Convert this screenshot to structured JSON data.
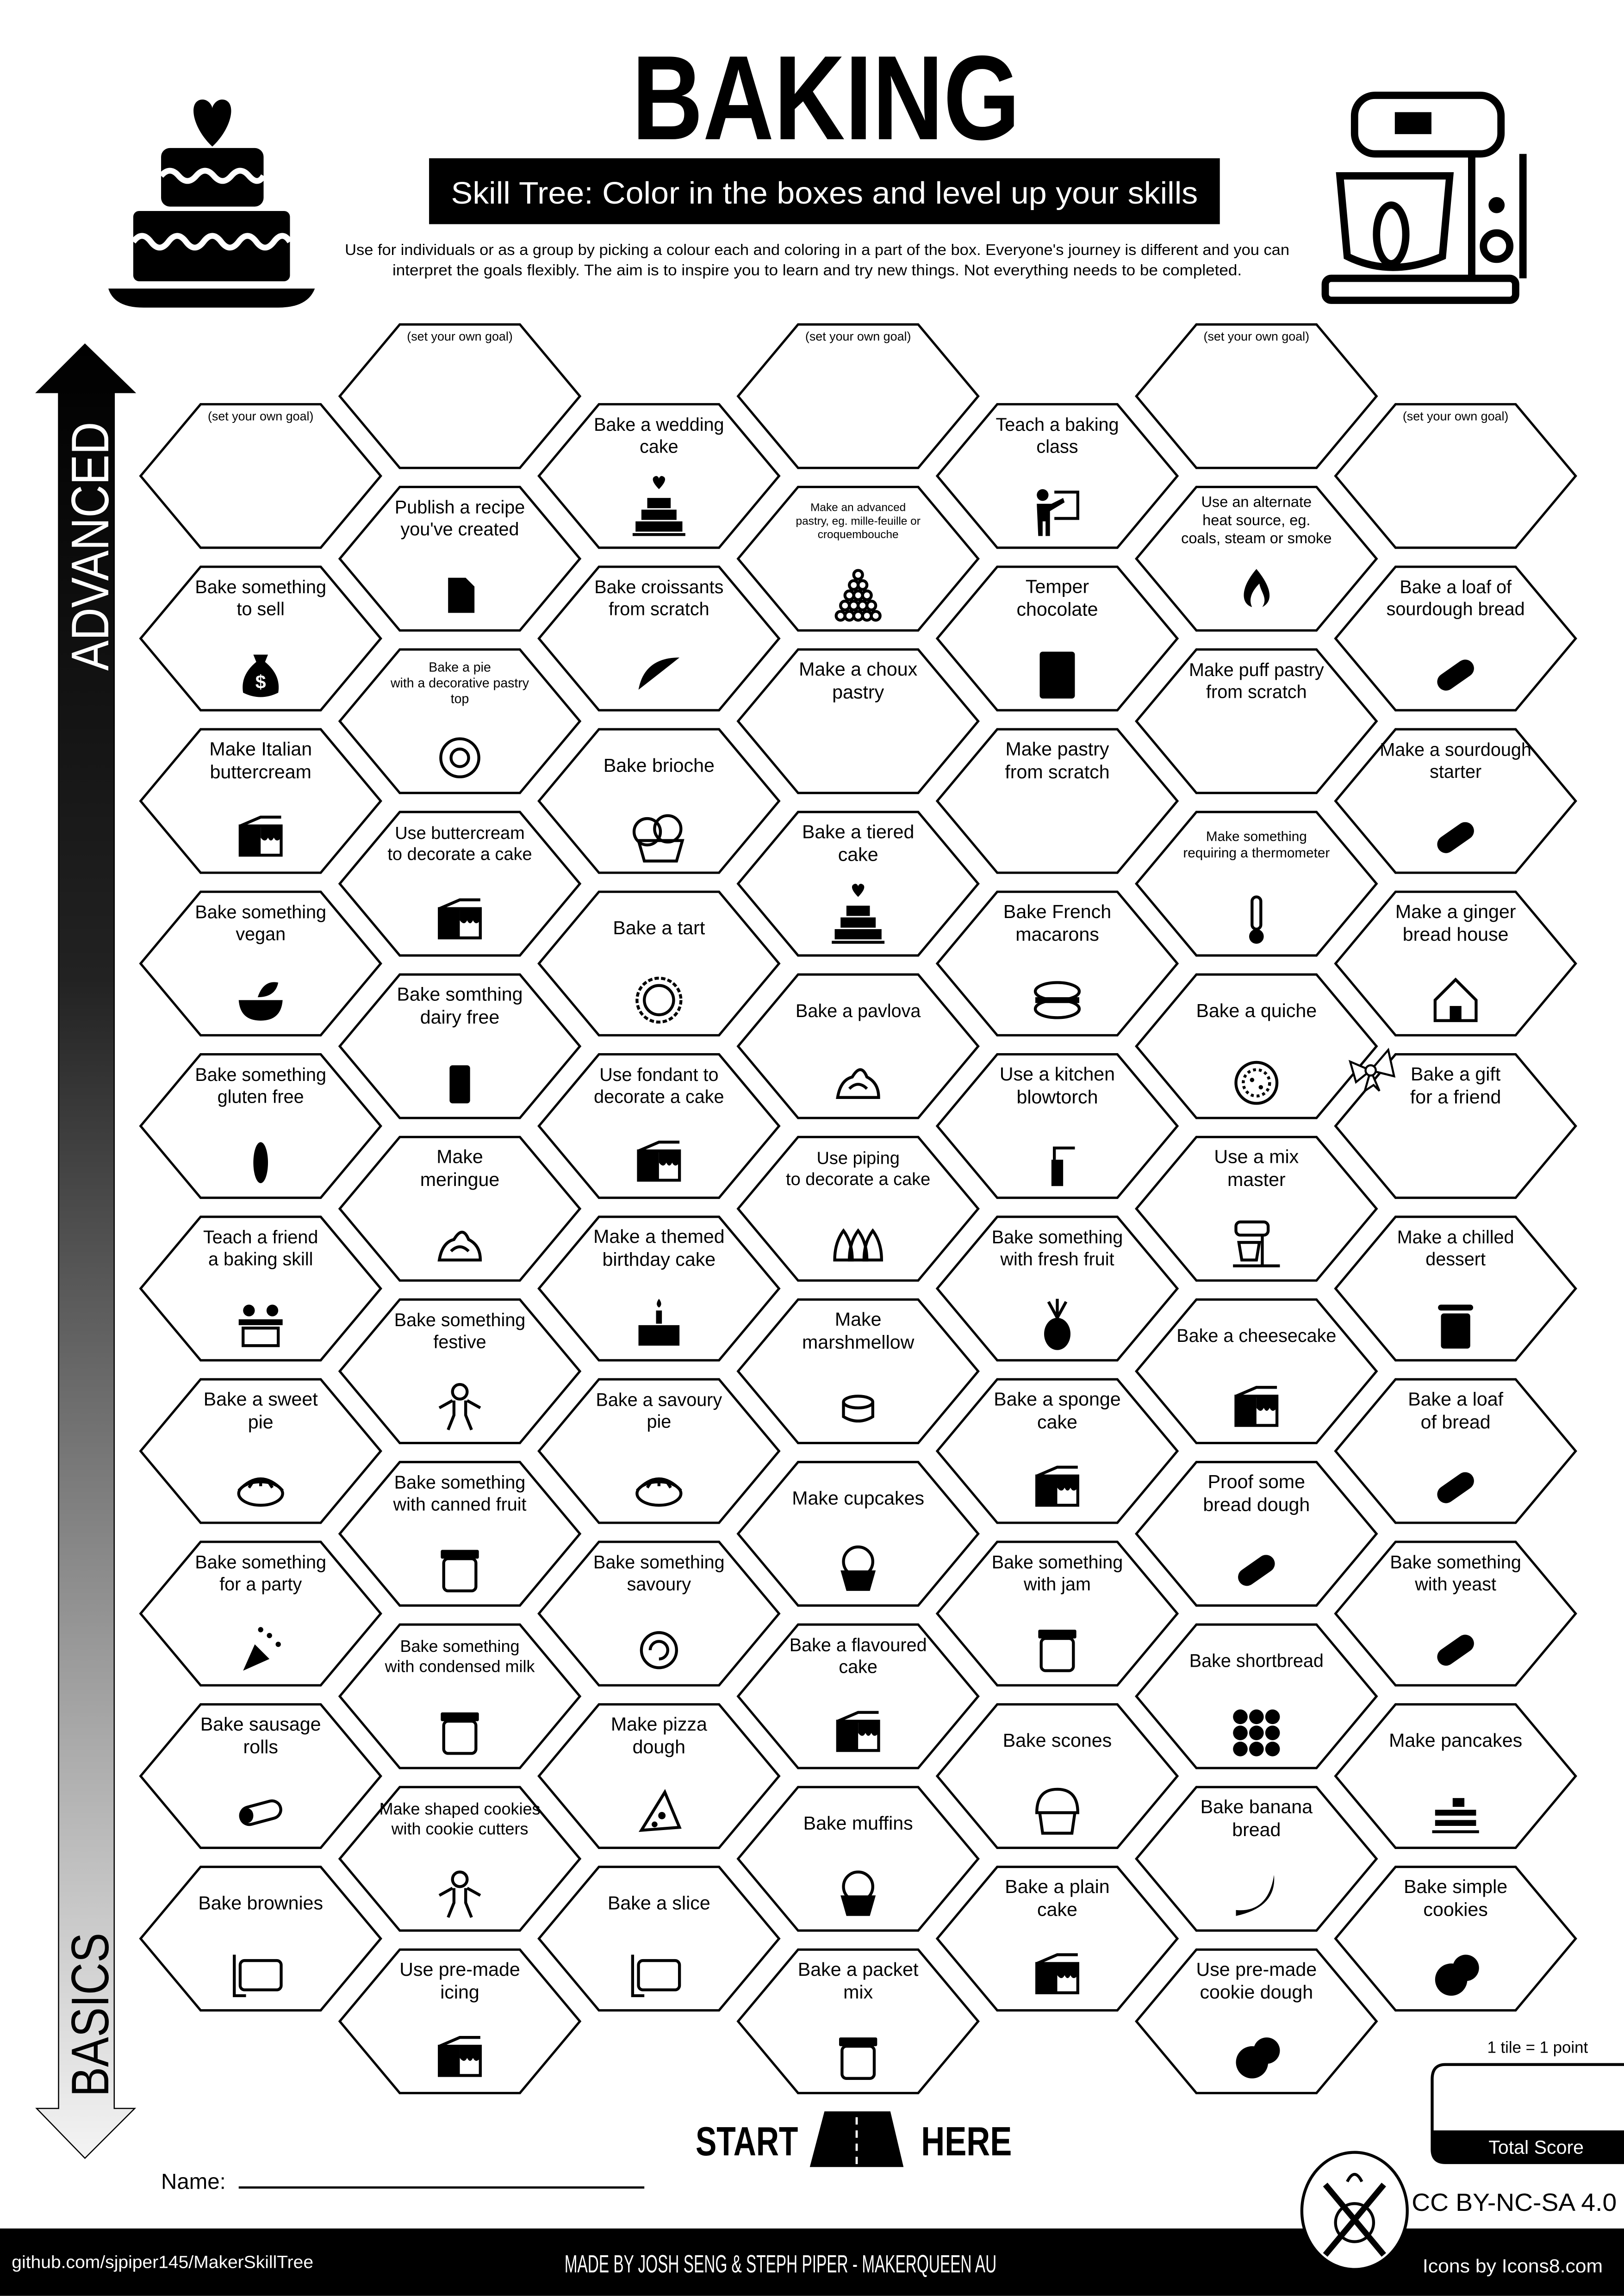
{
  "header": {
    "title": "BAKING",
    "subtitle": "Skill Tree:  Color in the boxes and level up your skills",
    "description": [
      "Use for individuals or as a group by picking a colour each and coloring in a part of the box.  Everyone's journey is different and you can",
      "interpret the goals flexibly.  The aim is to inspire you to learn and try new things. Not everything needs to be completed."
    ]
  },
  "axis": {
    "top_label": "ADVANCED",
    "bottom_label": "BASICS"
  },
  "columns": [
    [
      {
        "lines": [
          "(set your own goal)"
        ],
        "custom": true
      },
      {
        "lines": [
          "Bake something",
          "to sell"
        ],
        "icon": "money-bag"
      },
      {
        "lines": [
          "Make Italian",
          "buttercream"
        ],
        "icon": "cake-slice"
      },
      {
        "lines": [
          "Bake something",
          "vegan"
        ],
        "icon": "bowl"
      },
      {
        "lines": [
          "Bake something",
          "gluten free"
        ],
        "icon": "no-gluten"
      },
      {
        "lines": [
          "Teach a friend",
          "a baking skill"
        ],
        "icon": "people"
      },
      {
        "lines": [
          "Bake a sweet",
          "pie"
        ],
        "icon": "pie"
      },
      {
        "lines": [
          "Bake something",
          "for a party"
        ],
        "icon": "party-popper"
      },
      {
        "lines": [
          "Bake sausage",
          "rolls"
        ],
        "icon": "sausage-roll"
      },
      {
        "lines": [
          "Bake brownies"
        ],
        "icon": "tray"
      }
    ],
    [
      {
        "lines": [
          "(set your own goal)"
        ],
        "custom": true
      },
      {
        "lines": [
          "Publish a recipe",
          "you've created"
        ],
        "icon": "document"
      },
      {
        "lines": [
          "Bake a pie",
          "with a decorative pastry",
          "top"
        ],
        "icon": "pastry-top"
      },
      {
        "lines": [
          "Use buttercream",
          "to decorate a cake"
        ],
        "icon": "cake-slice"
      },
      {
        "lines": [
          "Bake somthing",
          "dairy free"
        ],
        "icon": "no-dairy"
      },
      {
        "lines": [
          "Make",
          "meringue"
        ],
        "icon": "meringue"
      },
      {
        "lines": [
          "Bake something",
          "festive"
        ],
        "icon": "gingerbread-man"
      },
      {
        "lines": [
          "Bake something",
          "with canned fruit"
        ],
        "icon": "jar"
      },
      {
        "lines": [
          "Bake something",
          "with condensed milk"
        ],
        "icon": "jar"
      },
      {
        "lines": [
          "Make shaped cookies",
          "with cookie cutters"
        ],
        "icon": "gingerbread-man"
      },
      {
        "lines": [
          "Use pre-made",
          "icing"
        ],
        "icon": "cake-slice"
      }
    ],
    [
      {
        "lines": [
          "Bake a wedding",
          "cake"
        ],
        "icon": "tiered-cake"
      },
      {
        "lines": [
          "Bake croissants",
          "from scratch"
        ],
        "icon": "croissant"
      },
      {
        "lines": [
          "Bake brioche"
        ],
        "icon": "brioche"
      },
      {
        "lines": [
          "Bake a tart"
        ],
        "icon": "tart"
      },
      {
        "lines": [
          "Use fondant to",
          "decorate a cake"
        ],
        "icon": "cake-slice"
      },
      {
        "lines": [
          "Make a themed",
          "birthday cake"
        ],
        "icon": "birthday-cake"
      },
      {
        "lines": [
          "Bake a savoury",
          "pie"
        ],
        "icon": "pie"
      },
      {
        "lines": [
          "Bake something",
          "savoury"
        ],
        "icon": "scroll"
      },
      {
        "lines": [
          "Make pizza",
          "dough"
        ],
        "icon": "pizza"
      },
      {
        "lines": [
          "Bake a slice"
        ],
        "icon": "tray"
      }
    ],
    [
      {
        "lines": [
          "(set your own goal)"
        ],
        "custom": true
      },
      {
        "lines": [
          "Make an advanced",
          "pastry, eg. mille-feuille or",
          "croquembouche"
        ],
        "icon": "croquembouche"
      },
      {
        "lines": [
          "Make a choux",
          "pastry"
        ],
        "icon": "rolling-pin"
      },
      {
        "lines": [
          "Bake a tiered",
          "cake"
        ],
        "icon": "tiered-cake"
      },
      {
        "lines": [
          "Bake a pavlova"
        ],
        "icon": "meringue"
      },
      {
        "lines": [
          "Use piping",
          "to decorate a cake"
        ],
        "icon": "piping"
      },
      {
        "lines": [
          "Make",
          "marshmellow"
        ],
        "icon": "marshmallow"
      },
      {
        "lines": [
          "Make cupcakes"
        ],
        "icon": "cupcake"
      },
      {
        "lines": [
          "Bake a flavoured",
          "cake"
        ],
        "icon": "cake-slice"
      },
      {
        "lines": [
          "Bake muffins"
        ],
        "icon": "muffin"
      },
      {
        "lines": [
          "Bake a packet",
          "mix"
        ],
        "icon": "packet"
      }
    ],
    [
      {
        "lines": [
          "Teach a baking",
          "class"
        ],
        "icon": "teacher"
      },
      {
        "lines": [
          "Temper",
          "chocolate"
        ],
        "icon": "chocolate"
      },
      {
        "lines": [
          "Make pastry",
          "from scratch"
        ],
        "icon": "rolling-pin"
      },
      {
        "lines": [
          "Bake French",
          "macarons"
        ],
        "icon": "macaron"
      },
      {
        "lines": [
          "Use a kitchen",
          "blowtorch"
        ],
        "icon": "blowtorch"
      },
      {
        "lines": [
          "Bake something",
          "with fresh fruit"
        ],
        "icon": "pineapple"
      },
      {
        "lines": [
          "Bake a sponge",
          "cake"
        ],
        "icon": "cake-slice"
      },
      {
        "lines": [
          "Bake something",
          "with jam"
        ],
        "icon": "jar"
      },
      {
        "lines": [
          "Bake scones"
        ],
        "icon": "scone"
      },
      {
        "lines": [
          "Bake a plain",
          "cake"
        ],
        "icon": "cake-slice"
      }
    ],
    [
      {
        "lines": [
          "(set your own goal)"
        ],
        "custom": true
      },
      {
        "lines": [
          "Use an alternate",
          "heat source, eg.",
          "coals, steam or smoke"
        ],
        "icon": "campfire"
      },
      {
        "lines": [
          "Make puff pastry",
          "from scratch"
        ],
        "icon": "rolling-pin"
      },
      {
        "lines": [
          "Make something",
          "requiring a thermometer"
        ],
        "icon": "thermometer"
      },
      {
        "lines": [
          "Bake a quiche"
        ],
        "icon": "quiche"
      },
      {
        "lines": [
          "Use a mix",
          "master"
        ],
        "icon": "mixer"
      },
      {
        "lines": [
          "Bake a cheesecake"
        ],
        "icon": "cake-slice"
      },
      {
        "lines": [
          "Proof some",
          "bread dough"
        ],
        "icon": "bread"
      },
      {
        "lines": [
          "Bake shortbread"
        ],
        "icon": "shortbread"
      },
      {
        "lines": [
          "Bake banana",
          "bread"
        ],
        "icon": "banana"
      },
      {
        "lines": [
          "Use pre-made",
          "cookie dough"
        ],
        "icon": "cookies"
      }
    ],
    [
      {
        "lines": [
          "(set your own goal)"
        ],
        "custom": true
      },
      {
        "lines": [
          "Bake a loaf of",
          "sourdough bread"
        ],
        "icon": "bread"
      },
      {
        "lines": [
          "Make a sourdough",
          "starter"
        ],
        "icon": "bread"
      },
      {
        "lines": [
          "Make a ginger",
          "bread house"
        ],
        "icon": "house"
      },
      {
        "lines": [
          "Bake a gift",
          "for a friend"
        ],
        "icon": "bow"
      },
      {
        "lines": [
          "Make a chilled",
          "dessert"
        ],
        "icon": "glass-dessert"
      },
      {
        "lines": [
          "Bake a loaf",
          "of bread"
        ],
        "icon": "bread"
      },
      {
        "lines": [
          "Bake something",
          "with yeast"
        ],
        "icon": "bread"
      },
      {
        "lines": [
          "Make pancakes"
        ],
        "icon": "pancakes"
      },
      {
        "lines": [
          "Bake simple",
          "cookies"
        ],
        "icon": "cookies"
      }
    ]
  ],
  "start": {
    "left": "START",
    "right": "HERE"
  },
  "name_label": "Name:",
  "score": {
    "rule": "1 tile = 1 point",
    "label": "Total Score"
  },
  "license": "CC BY-NC-SA 4.0",
  "footer": {
    "github": "github.com/sjpiper145/MakerSkillTree",
    "credits": "MADE BY JOSH SENG & STEPH PIPER  -  MAKERQUEEN AU",
    "icons": "Icons by Icons8.com"
  },
  "colors": {
    "ink": "#000000",
    "paper": "#ffffff",
    "arrow_fade": "#f2f2f2"
  }
}
